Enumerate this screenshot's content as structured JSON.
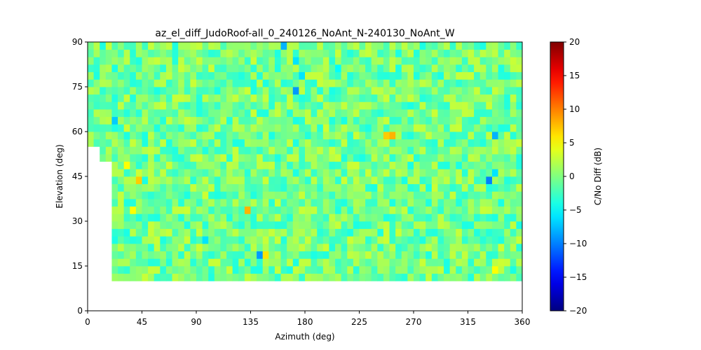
{
  "chart_data": {
    "type": "heatmap",
    "title": "az_el_diff_JudoRoof-all_0_240126_NoAnt_N-240130_NoAnt_W",
    "xlabel": "Azimuth (deg)",
    "ylabel": "Elevation (deg)",
    "xlim": [
      0,
      360
    ],
    "ylim": [
      0,
      90
    ],
    "xticks": [
      0,
      45,
      90,
      135,
      180,
      225,
      270,
      315,
      360
    ],
    "yticks": [
      0,
      15,
      30,
      45,
      60,
      75,
      90
    ],
    "colorbar": {
      "label": "C/No Diff (dB)",
      "colormap": "jet",
      "range": [
        -20,
        20
      ],
      "ticks": [
        -20,
        -15,
        -10,
        -5,
        0,
        5,
        10,
        15,
        20
      ]
    },
    "bin_size_deg": {
      "azimuth": 5,
      "elevation": 2.5
    },
    "coverage_note_elev_min_by_azimuth_bin": [
      {
        "az_from": 20,
        "az_to": 340,
        "elev_min": 10
      },
      {
        "az_from": 10,
        "az_to": 20,
        "elev_min": 50
      },
      {
        "az_from": 0,
        "az_to": 10,
        "elev_min": 55
      }
    ],
    "notable_cells": [
      {
        "az": 160,
        "el": 88.75,
        "value": -8
      },
      {
        "az": 170,
        "el": 83.75,
        "value": -6
      },
      {
        "az": 170,
        "el": 73.75,
        "value": -9
      },
      {
        "az": 175,
        "el": 78.75,
        "value": -6
      },
      {
        "az": 205,
        "el": 81.25,
        "value": -5
      },
      {
        "az": 20,
        "el": 63.75,
        "value": -7
      },
      {
        "az": 335,
        "el": 58.75,
        "value": -8
      },
      {
        "az": 335,
        "el": 46.25,
        "value": -6
      },
      {
        "az": 330,
        "el": 43.75,
        "value": -10
      },
      {
        "az": 140,
        "el": 18.75,
        "value": -9
      },
      {
        "az": 95,
        "el": 23.75,
        "value": -6
      },
      {
        "az": 245,
        "el": 58.75,
        "value": 7
      },
      {
        "az": 250,
        "el": 58.75,
        "value": 8
      },
      {
        "az": 130,
        "el": 33.75,
        "value": 8
      },
      {
        "az": 40,
        "el": 43.75,
        "value": 7
      },
      {
        "az": 145,
        "el": 18.75,
        "value": 6
      },
      {
        "az": 335,
        "el": 13.75,
        "value": 5
      },
      {
        "az": 30,
        "el": 48.75,
        "value": 5
      },
      {
        "az": 35,
        "el": 33.75,
        "value": 5
      }
    ],
    "typical_value_range": [
      -4,
      3
    ]
  }
}
